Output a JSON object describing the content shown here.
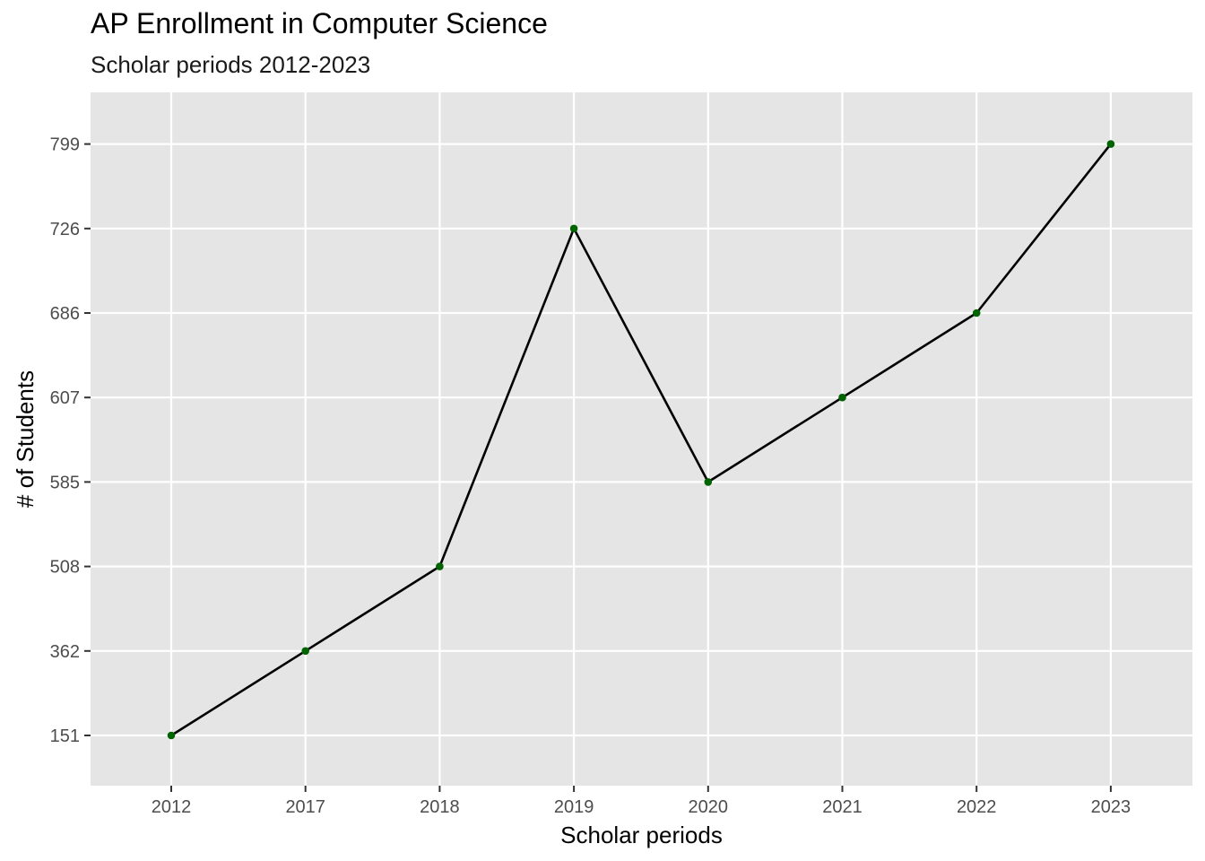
{
  "chart_data": {
    "type": "line",
    "title": "AP Enrollment in Computer Science",
    "subtitle": "Scholar periods 2012-2023",
    "xlabel": "Scholar periods",
    "ylabel": "# of Students",
    "categories": [
      "2012",
      "2017",
      "2018",
      "2019",
      "2020",
      "2021",
      "2022",
      "2023"
    ],
    "values": [
      151,
      362,
      508,
      726,
      585,
      607,
      686,
      799
    ],
    "y_tick_labels": [
      "151",
      "362",
      "508",
      "585",
      "607",
      "686",
      "726",
      "799"
    ],
    "y_scale": "ordinal (each distinct value is an evenly spaced level)",
    "grid": true,
    "legend": "none",
    "colors": {
      "panel_background": "#e5e5e5",
      "grid": "#ffffff",
      "line": "#000000",
      "points": "#006400"
    }
  }
}
